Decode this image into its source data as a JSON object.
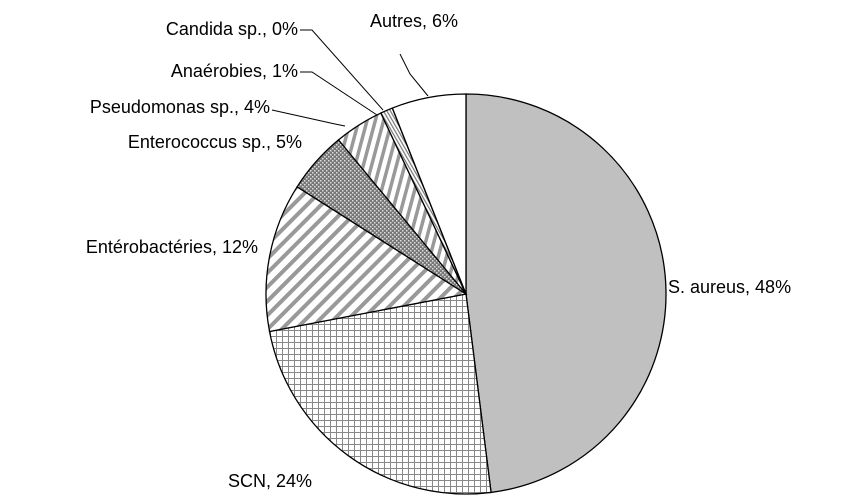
{
  "chart_data": {
    "type": "pie",
    "labels": [
      "S. aureus, 48%",
      "SCN, 24%",
      "Entérobactéries, 12%",
      "Enterococcus sp., 5%",
      "Pseudomonas sp., 4%",
      "Anaérobies, 1%",
      "Candida sp., 0%",
      "Autres, 6%"
    ],
    "values": [
      48,
      24,
      12,
      5,
      4,
      1,
      0,
      6
    ],
    "fills": [
      "#c0c0c0",
      "url(#p-grid)",
      "url(#p-diag)",
      "url(#p-dots)",
      "url(#p-vert)",
      "url(#p-fine)",
      "#ffffff",
      "#ffffff"
    ]
  }
}
